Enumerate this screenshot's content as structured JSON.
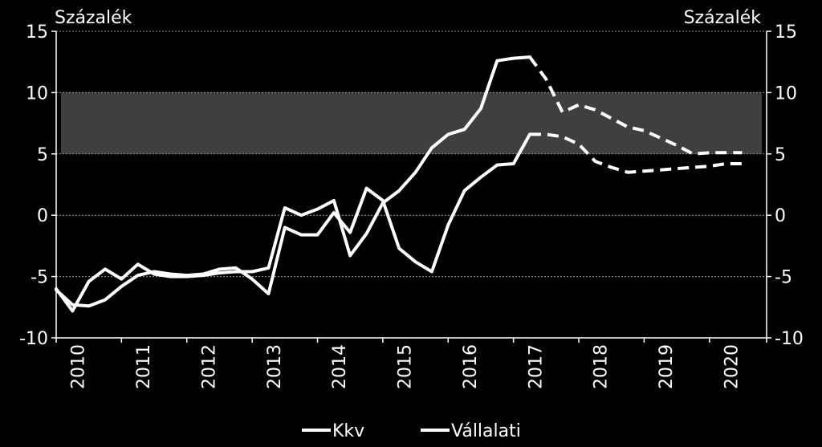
{
  "chart_data": {
    "type": "line",
    "ylabel_left": "Százalék",
    "ylabel_right": "Százalék",
    "ylim": [
      -10,
      15
    ],
    "yticks": [
      -10,
      -5,
      0,
      5,
      10,
      15
    ],
    "xlim": [
      2010,
      2020.875
    ],
    "xticks": [
      "2010",
      "2011",
      "2012",
      "2013",
      "2014",
      "2015",
      "2016",
      "2017",
      "2018",
      "2019",
      "2020"
    ],
    "grid": true,
    "band": {
      "from": 5,
      "to": 10,
      "color": "#3f3f3f"
    },
    "legend_position": "bottom",
    "colors": {
      "background": "#000000",
      "line": "#ffffff",
      "grid": "#9a9a9a"
    },
    "series": [
      {
        "name": "Kkv",
        "actual": [
          [
            2010.0,
            -6.0
          ],
          [
            2010.25,
            -7.8
          ],
          [
            2010.5,
            -5.4
          ],
          [
            2010.75,
            -4.4
          ],
          [
            2011.0,
            -5.2
          ],
          [
            2011.25,
            -4.0
          ],
          [
            2011.5,
            -4.8
          ],
          [
            2011.75,
            -5.0
          ],
          [
            2012.0,
            -5.0
          ],
          [
            2012.25,
            -4.9
          ],
          [
            2012.5,
            -4.7
          ],
          [
            2012.75,
            -4.6
          ],
          [
            2013.0,
            -4.6
          ],
          [
            2013.25,
            -4.3
          ],
          [
            2013.5,
            0.6
          ],
          [
            2013.75,
            0.0
          ],
          [
            2014.0,
            0.5
          ],
          [
            2014.25,
            1.2
          ],
          [
            2014.5,
            -3.3
          ],
          [
            2014.75,
            -1.5
          ],
          [
            2015.0,
            1.0
          ],
          [
            2015.25,
            2.0
          ],
          [
            2015.5,
            3.5
          ],
          [
            2015.75,
            5.5
          ],
          [
            2016.0,
            6.6
          ],
          [
            2016.25,
            7.0
          ],
          [
            2016.5,
            8.7
          ],
          [
            2016.75,
            12.6
          ],
          [
            2017.0,
            12.8
          ],
          [
            2017.25,
            12.9
          ]
        ],
        "forecast": [
          [
            2017.25,
            12.9
          ],
          [
            2017.5,
            11.1
          ],
          [
            2017.75,
            8.4
          ],
          [
            2018.0,
            9.0
          ],
          [
            2018.25,
            8.6
          ],
          [
            2018.5,
            7.9
          ],
          [
            2018.75,
            7.2
          ],
          [
            2019.0,
            6.9
          ],
          [
            2019.25,
            6.3
          ],
          [
            2019.5,
            5.7
          ],
          [
            2019.75,
            5.0
          ],
          [
            2020.0,
            5.1
          ],
          [
            2020.25,
            5.1
          ],
          [
            2020.5,
            5.1
          ]
        ]
      },
      {
        "name": "Vállalati",
        "actual": [
          [
            2010.0,
            -6.1
          ],
          [
            2010.25,
            -7.3
          ],
          [
            2010.5,
            -7.4
          ],
          [
            2010.75,
            -6.9
          ],
          [
            2011.0,
            -5.8
          ],
          [
            2011.25,
            -4.9
          ],
          [
            2011.5,
            -4.6
          ],
          [
            2011.75,
            -4.8
          ],
          [
            2012.0,
            -4.9
          ],
          [
            2012.25,
            -4.8
          ],
          [
            2012.5,
            -4.4
          ],
          [
            2012.75,
            -4.3
          ],
          [
            2013.0,
            -5.2
          ],
          [
            2013.25,
            -6.4
          ],
          [
            2013.5,
            -1.0
          ],
          [
            2013.75,
            -1.6
          ],
          [
            2014.0,
            -1.6
          ],
          [
            2014.25,
            0.2
          ],
          [
            2014.5,
            -1.4
          ],
          [
            2014.75,
            2.2
          ],
          [
            2015.0,
            1.2
          ],
          [
            2015.25,
            -2.7
          ],
          [
            2015.5,
            -3.8
          ],
          [
            2015.75,
            -4.6
          ],
          [
            2016.0,
            -0.8
          ],
          [
            2016.25,
            2.0
          ],
          [
            2016.5,
            3.1
          ],
          [
            2016.75,
            4.1
          ],
          [
            2017.0,
            4.2
          ],
          [
            2017.25,
            6.6
          ]
        ],
        "forecast": [
          [
            2017.25,
            6.6
          ],
          [
            2017.5,
            6.6
          ],
          [
            2017.75,
            6.4
          ],
          [
            2018.0,
            5.8
          ],
          [
            2018.25,
            4.4
          ],
          [
            2018.5,
            3.9
          ],
          [
            2018.75,
            3.5
          ],
          [
            2019.0,
            3.6
          ],
          [
            2019.25,
            3.7
          ],
          [
            2019.5,
            3.8
          ],
          [
            2019.75,
            3.9
          ],
          [
            2020.0,
            4.0
          ],
          [
            2020.25,
            4.2
          ],
          [
            2020.5,
            4.2
          ]
        ]
      }
    ]
  }
}
